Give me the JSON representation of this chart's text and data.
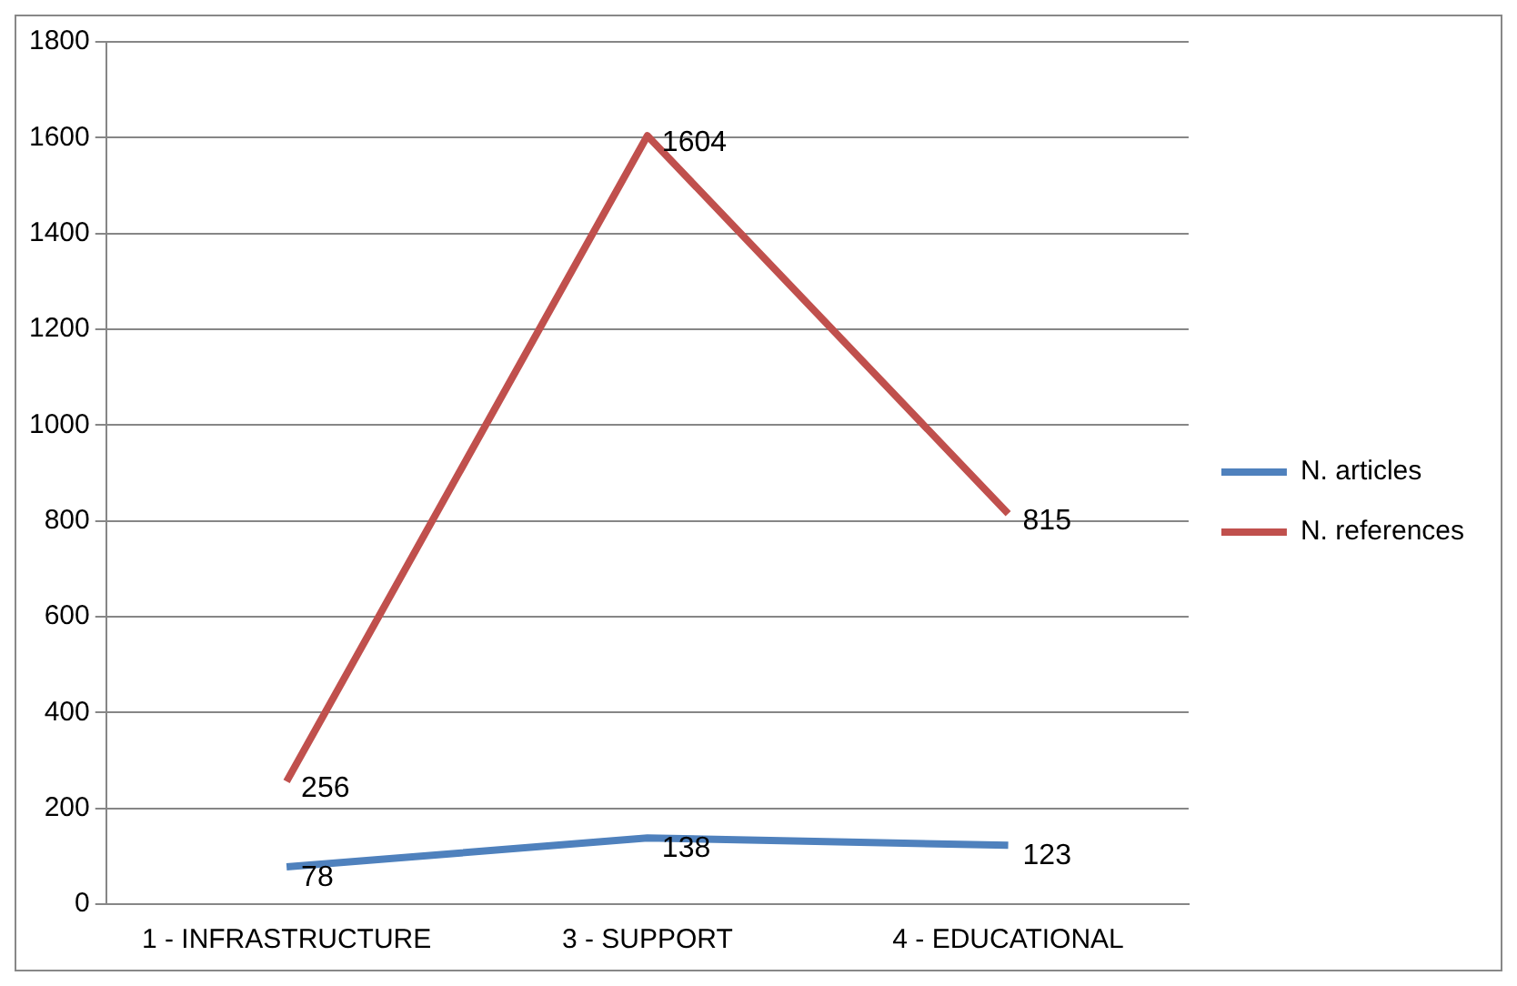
{
  "chart_data": {
    "type": "line",
    "categories": [
      "1 - INFRASTRUCTURE",
      "3 - SUPPORT",
      "4 - EDUCATIONAL"
    ],
    "series": [
      {
        "name": "N. articles",
        "color": "#4f81bd",
        "values": [
          78,
          138,
          123
        ]
      },
      {
        "name": "N. references",
        "color": "#c0504d",
        "values": [
          256,
          1604,
          815
        ]
      }
    ],
    "ylim": [
      0,
      1800
    ],
    "yticks": [
      0,
      200,
      400,
      600,
      800,
      1000,
      1200,
      1400,
      1600,
      1800
    ],
    "grid": "y",
    "legend": "right",
    "marker": "none",
    "data_labels": true
  }
}
